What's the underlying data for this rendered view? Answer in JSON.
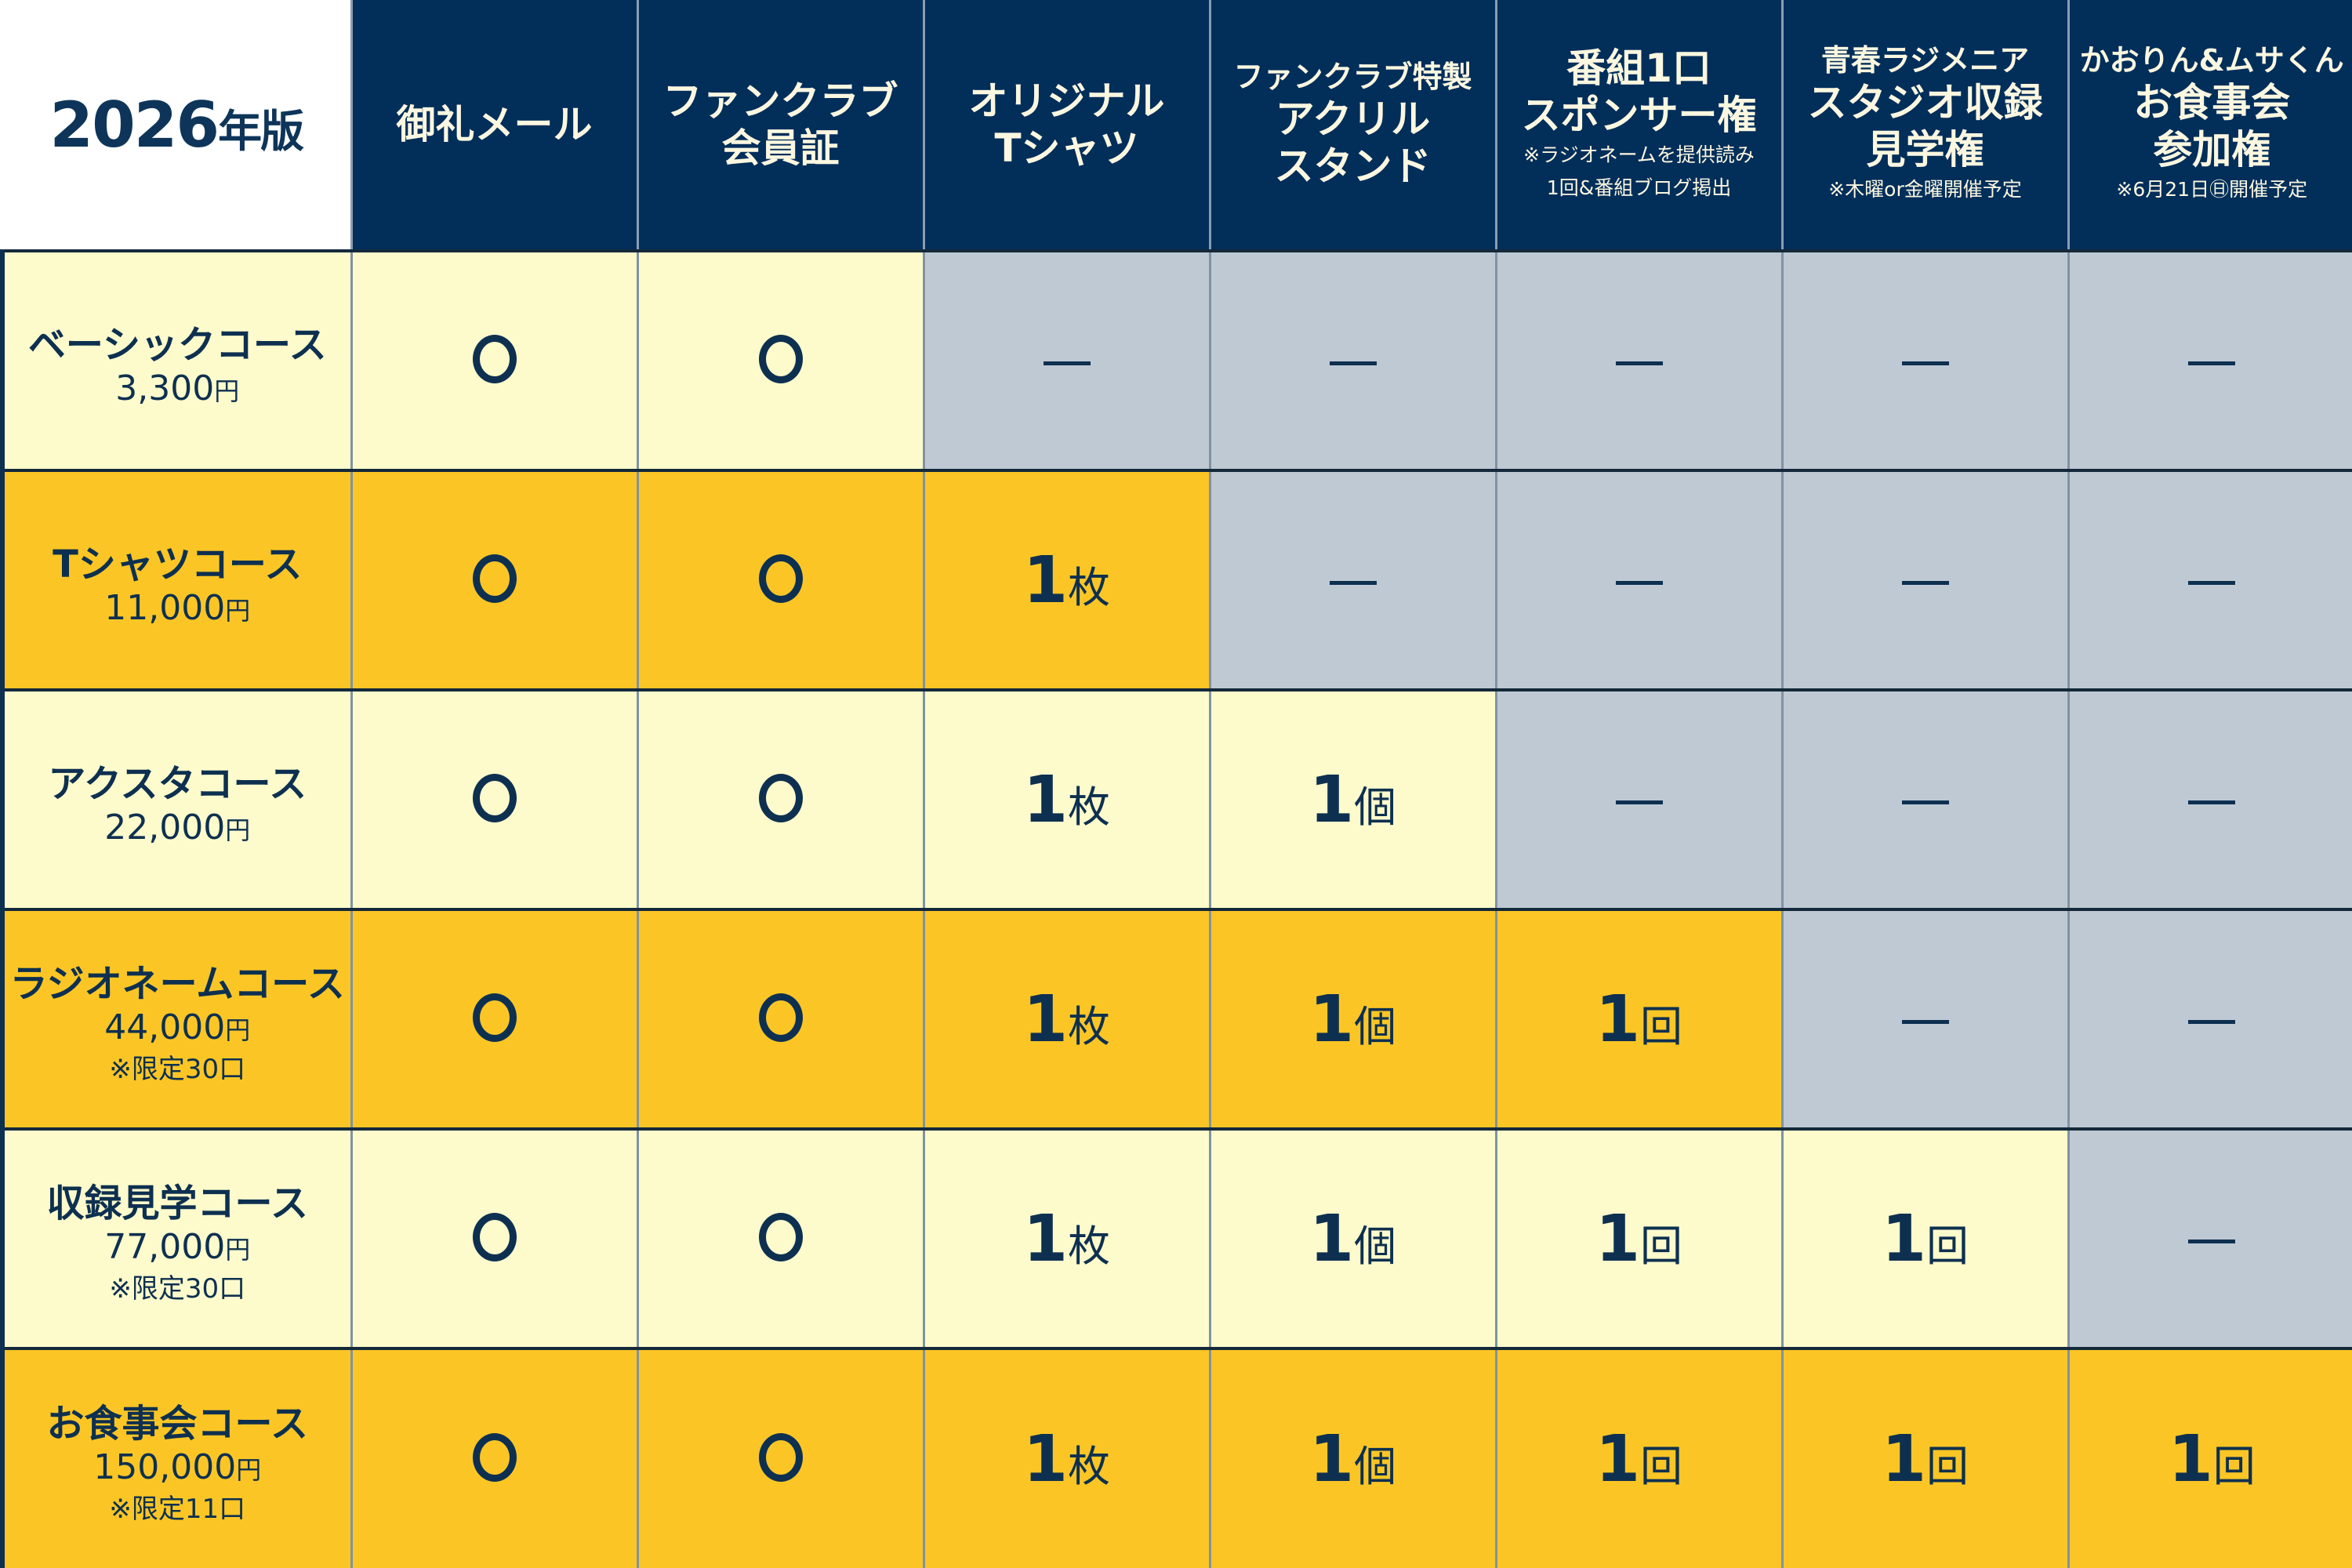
{
  "title": {
    "year": "2026",
    "suffix": "年版"
  },
  "headers": [
    {
      "pre": "",
      "big": "御礼メール",
      "notes": []
    },
    {
      "pre": "",
      "big": "ファンクラブ\n会員証",
      "notes": []
    },
    {
      "pre": "",
      "big": "オリジナル\nTシャツ",
      "notes": []
    },
    {
      "pre": "ファンクラブ特製",
      "big": "アクリル\nスタンド",
      "notes": []
    },
    {
      "pre": "",
      "big": "番組1口\nスポンサー権",
      "notes": [
        "※ラジオネームを提供読み",
        "1回&番組ブログ掲出"
      ]
    },
    {
      "pre": "青春ラジメニア",
      "big": "スタジオ収録\n見学権",
      "notes": [
        "※木曜or金曜開催予定"
      ]
    },
    {
      "pre": "かおりん&ムサくん",
      "big": "お食事会\n参加権",
      "notes": [
        "※6月21日㊐開催予定"
      ]
    }
  ],
  "rows": [
    {
      "name": "ベーシックコース",
      "price": "3,300",
      "yen": "円",
      "limit": "",
      "tone": "light",
      "cells": [
        {
          "t": "circle"
        },
        {
          "t": "circle"
        },
        {
          "t": "dash"
        },
        {
          "t": "dash"
        },
        {
          "t": "dash"
        },
        {
          "t": "dash"
        },
        {
          "t": "dash"
        }
      ]
    },
    {
      "name": "Tシャツコース",
      "price": "11,000",
      "yen": "円",
      "limit": "",
      "tone": "dark",
      "cells": [
        {
          "t": "circle"
        },
        {
          "t": "circle"
        },
        {
          "t": "qty",
          "n": "1",
          "u": "枚"
        },
        {
          "t": "dash"
        },
        {
          "t": "dash"
        },
        {
          "t": "dash"
        },
        {
          "t": "dash"
        }
      ]
    },
    {
      "name": "アクスタコース",
      "price": "22,000",
      "yen": "円",
      "limit": "",
      "tone": "light",
      "cells": [
        {
          "t": "circle"
        },
        {
          "t": "circle"
        },
        {
          "t": "qty",
          "n": "1",
          "u": "枚"
        },
        {
          "t": "qty",
          "n": "1",
          "u": "個"
        },
        {
          "t": "dash"
        },
        {
          "t": "dash"
        },
        {
          "t": "dash"
        }
      ]
    },
    {
      "name": "ラジオネームコース",
      "price": "44,000",
      "yen": "円",
      "limit": "※限定30口",
      "tone": "dark",
      "cells": [
        {
          "t": "circle"
        },
        {
          "t": "circle"
        },
        {
          "t": "qty",
          "n": "1",
          "u": "枚"
        },
        {
          "t": "qty",
          "n": "1",
          "u": "個"
        },
        {
          "t": "qty",
          "n": "1",
          "u": "回"
        },
        {
          "t": "dash"
        },
        {
          "t": "dash"
        }
      ]
    },
    {
      "name": "収録見学コース",
      "price": "77,000",
      "yen": "円",
      "limit": "※限定30口",
      "tone": "light",
      "cells": [
        {
          "t": "circle"
        },
        {
          "t": "circle"
        },
        {
          "t": "qty",
          "n": "1",
          "u": "枚"
        },
        {
          "t": "qty",
          "n": "1",
          "u": "個"
        },
        {
          "t": "qty",
          "n": "1",
          "u": "回"
        },
        {
          "t": "qty",
          "n": "1",
          "u": "回"
        },
        {
          "t": "dash"
        }
      ]
    },
    {
      "name": "お食事会コース",
      "price": "150,000",
      "yen": "円",
      "limit": "※限定11口",
      "tone": "dark",
      "cells": [
        {
          "t": "circle"
        },
        {
          "t": "circle"
        },
        {
          "t": "qty",
          "n": "1",
          "u": "枚"
        },
        {
          "t": "qty",
          "n": "1",
          "u": "個"
        },
        {
          "t": "qty",
          "n": "1",
          "u": "回"
        },
        {
          "t": "qty",
          "n": "1",
          "u": "回"
        },
        {
          "t": "qty",
          "n": "1",
          "u": "回"
        }
      ]
    }
  ],
  "colors": {
    "header_bg": "#022e5a",
    "light": "#fdfbcc",
    "dark": "#fbc625",
    "unavailable": "#bfc9d4",
    "text": "#0e3050"
  }
}
